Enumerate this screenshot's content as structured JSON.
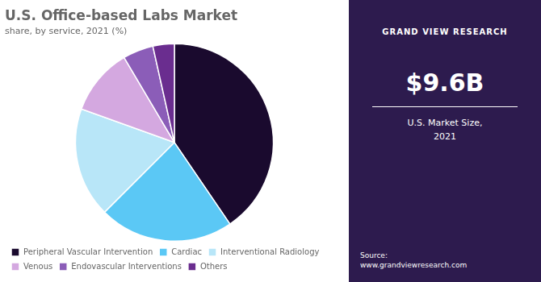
{
  "chart_data": {
    "type": "pie",
    "title": "U.S. Office-based Labs Market",
    "subtitle": "share, by service, 2021 (%)",
    "categories": [
      "Peripheral Vascular Intervention",
      "Cardiac",
      "Interventional Radiology",
      "Venous",
      "Endovascular Interventions",
      "Others"
    ],
    "values": [
      40.5,
      22.0,
      18.0,
      11.0,
      5.0,
      3.5
    ],
    "colors": [
      "#1a0a2e",
      "#5bc8f5",
      "#b8e6f8",
      "#d4a8e0",
      "#8b5db8",
      "#6a2d8f"
    ],
    "legend": "lower left",
    "annotations": [
      "GRAND VIEW RESEARCH",
      "$9.6B",
      "U.S. Market Size,\n2021",
      "Source:\nwww.grandviewresearch.com"
    ]
  }
}
